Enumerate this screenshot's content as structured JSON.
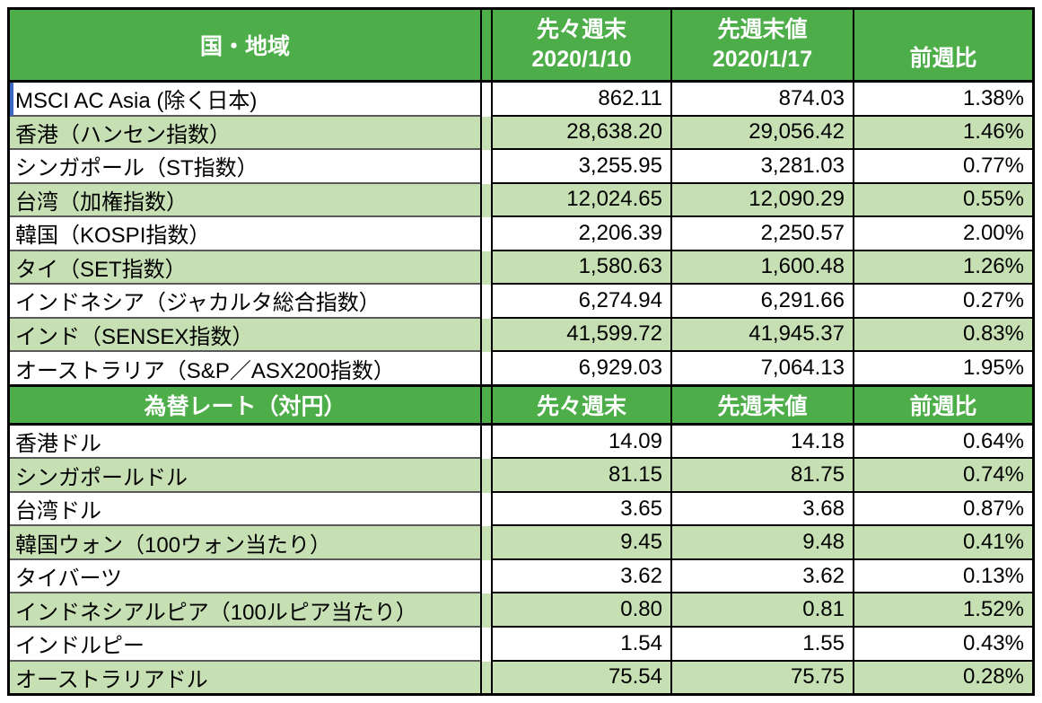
{
  "colors": {
    "header_bg": "#4dae49",
    "header_text": "#ffffff",
    "row_bg_white": "#ffffff",
    "row_bg_green": "#c6e0b4",
    "grid_black": "#000000",
    "name_divider_gray": "#595959",
    "cell_cursor_blue": "#3b68c5"
  },
  "index_table": {
    "header": {
      "region": "国・地域",
      "prev_label": "先々週末",
      "prev_date": "2020/1/10",
      "last_label": "先週末値",
      "last_date": "2020/1/17",
      "change_label": "前週比"
    },
    "rows": [
      {
        "name": "MSCI AC Asia (除く日本)",
        "prev": "862.11",
        "last": "874.03",
        "change": "1.38%"
      },
      {
        "name": "香港（ハンセン指数）",
        "prev": "28,638.20",
        "last": "29,056.42",
        "change": "1.46%"
      },
      {
        "name": "シンガポール（ST指数）",
        "prev": "3,255.95",
        "last": "3,281.03",
        "change": "0.77%"
      },
      {
        "name": "台湾（加権指数）",
        "prev": "12,024.65",
        "last": "12,090.29",
        "change": "0.55%"
      },
      {
        "name": "韓国（KOSPI指数）",
        "prev": "2,206.39",
        "last": "2,250.57",
        "change": "2.00%"
      },
      {
        "name": "タイ（SET指数）",
        "prev": "1,580.63",
        "last": "1,600.48",
        "change": "1.26%"
      },
      {
        "name": "インドネシア（ジャカルタ総合指数）",
        "prev": "6,274.94",
        "last": "6,291.66",
        "change": "0.27%"
      },
      {
        "name": "インド（SENSEX指数）",
        "prev": "41,599.72",
        "last": "41,945.37",
        "change": "0.83%"
      },
      {
        "name": "オーストラリア（S&P／ASX200指数）",
        "prev": "6,929.03",
        "last": "7,064.13",
        "change": "1.95%"
      }
    ]
  },
  "fx_table": {
    "header": {
      "title": "為替レート（対円）",
      "prev_label": "先々週末",
      "last_label": "先週末値",
      "change_label": "前週比"
    },
    "rows": [
      {
        "name": "香港ドル",
        "prev": "14.09",
        "last": "14.18",
        "change": "0.64%"
      },
      {
        "name": "シンガポールドル",
        "prev": "81.15",
        "last": "81.75",
        "change": "0.74%"
      },
      {
        "name": "台湾ドル",
        "prev": "3.65",
        "last": "3.68",
        "change": "0.87%"
      },
      {
        "name": "韓国ウォン（100ウォン当たり）",
        "prev": "9.45",
        "last": "9.48",
        "change": "0.41%"
      },
      {
        "name": "タイバーツ",
        "prev": "3.62",
        "last": "3.62",
        "change": "0.13%"
      },
      {
        "name": "インドネシアルピア（100ルピア当たり）",
        "prev": "0.80",
        "last": "0.81",
        "change": "1.52%"
      },
      {
        "name": "インドルピー",
        "prev": "1.54",
        "last": "1.55",
        "change": "0.43%"
      },
      {
        "name": "オーストラリアドル",
        "prev": "75.54",
        "last": "75.75",
        "change": "0.28%"
      }
    ]
  }
}
